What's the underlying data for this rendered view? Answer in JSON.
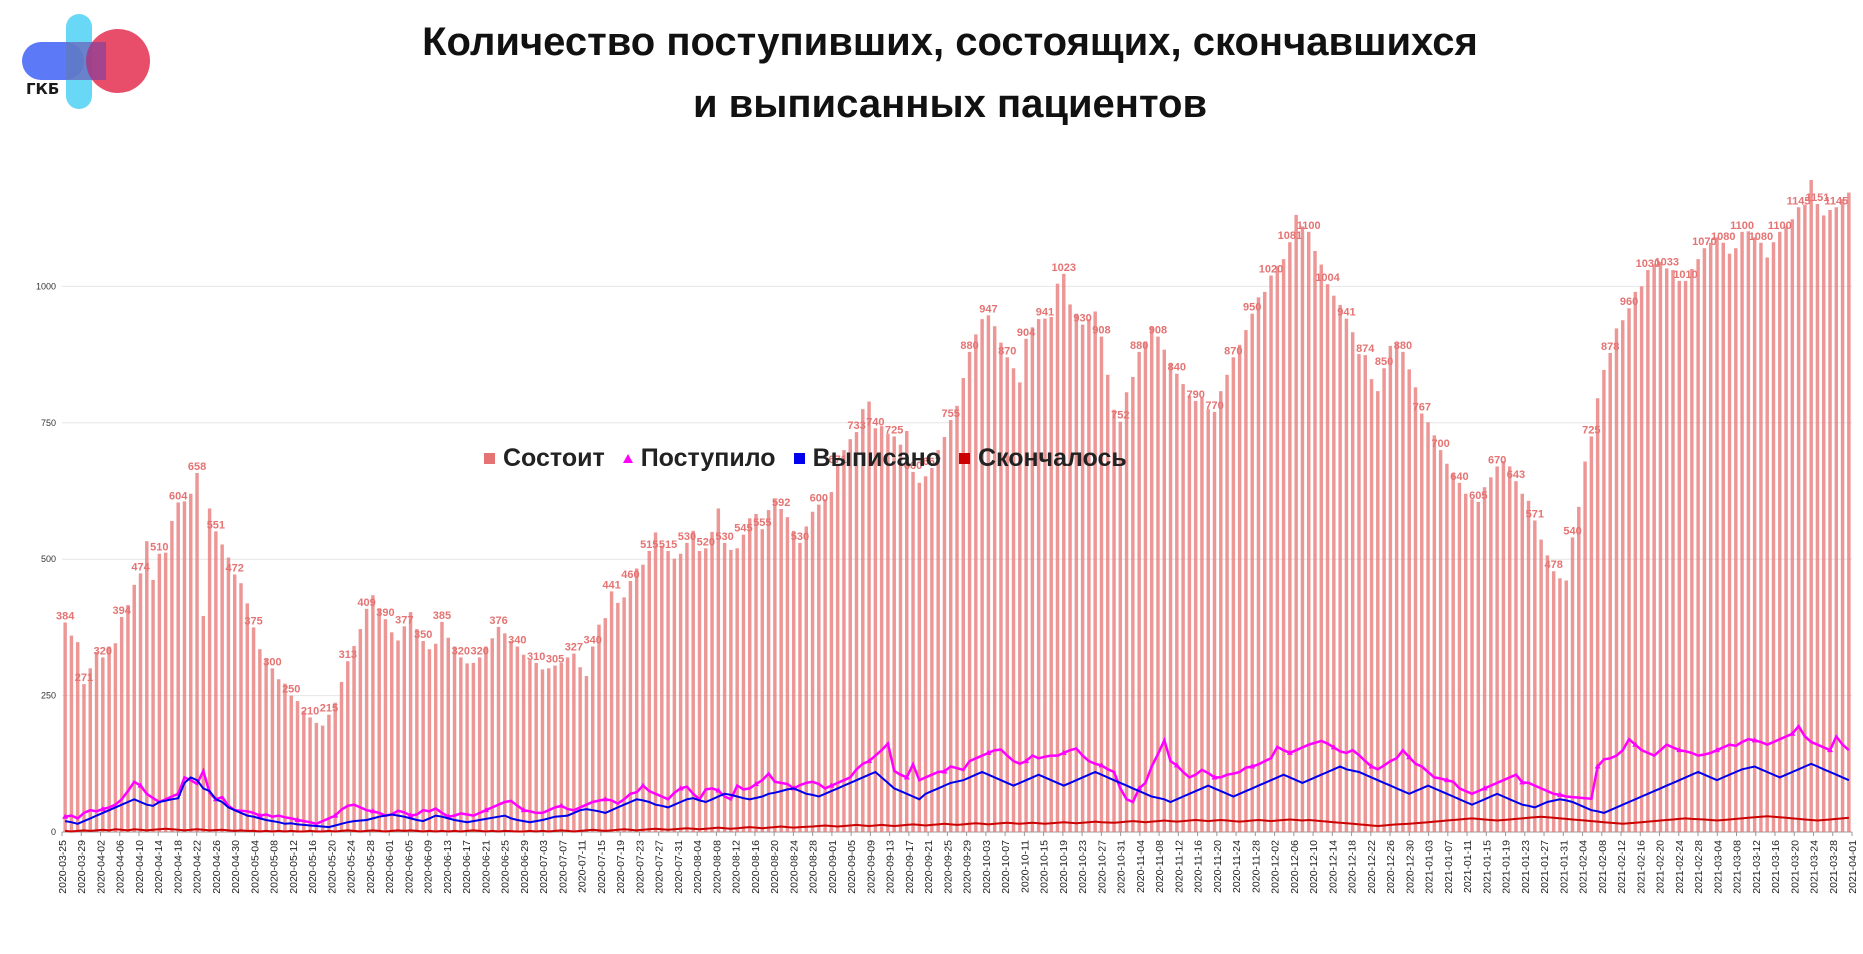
{
  "logo": {
    "text": "ГКБ",
    "colors": [
      "#4a6cf7",
      "#4fd1f5",
      "#e63b5a"
    ]
  },
  "title": {
    "line1": "Количество поступивших, состоящих, скончавшихся",
    "line2": "и выписанных пациентов"
  },
  "legend": [
    {
      "label": "Состоит",
      "marker": "square",
      "color": "#e57373"
    },
    {
      "label": "Поступило",
      "marker": "triangle",
      "color": "#ff00ff"
    },
    {
      "label": "Выписано",
      "marker": "square",
      "color": "#0000ee"
    },
    {
      "label": "Скончалось",
      "marker": "square",
      "color": "#cc0000"
    }
  ],
  "chart_data": {
    "type": "bar",
    "title": "Количество поступивших, состоящих, скончавшихся и выписанных пациентов",
    "xlabel": "",
    "ylabel": "",
    "ylim": [
      0,
      1250
    ],
    "yticks": [
      0,
      250,
      500,
      750,
      1000
    ],
    "grid": true,
    "legend_position": "middle-left",
    "x_tick_labels": [
      "2020-03-25",
      "2020-03-29",
      "2020-04-02",
      "2020-04-06",
      "2020-04-10",
      "2020-04-14",
      "2020-04-18",
      "2020-04-22",
      "2020-04-26",
      "2020-04-30",
      "2020-05-04",
      "2020-05-08",
      "2020-05-12",
      "2020-05-16",
      "2020-05-20",
      "2020-05-24",
      "2020-05-28",
      "2020-06-01",
      "2020-06-05",
      "2020-06-09",
      "2020-06-13",
      "2020-06-17",
      "2020-06-21",
      "2020-06-25",
      "2020-06-29",
      "2020-07-03",
      "2020-07-07",
      "2020-07-11",
      "2020-07-15",
      "2020-07-19",
      "2020-07-23",
      "2020-07-27",
      "2020-07-31",
      "2020-08-04",
      "2020-08-08",
      "2020-08-12",
      "2020-08-16",
      "2020-08-20",
      "2020-08-24",
      "2020-08-28",
      "2020-09-01",
      "2020-09-05",
      "2020-09-09",
      "2020-09-13",
      "2020-09-17",
      "2020-09-21",
      "2020-09-25",
      "2020-09-29",
      "2020-10-03",
      "2020-10-07",
      "2020-10-11",
      "2020-10-15",
      "2020-10-19",
      "2020-10-23",
      "2020-10-27",
      "2020-10-31",
      "2020-11-04",
      "2020-11-08",
      "2020-11-12",
      "2020-11-16",
      "2020-11-20",
      "2020-11-24",
      "2020-11-28",
      "2020-12-02",
      "2020-12-06",
      "2020-12-10",
      "2020-12-14",
      "2020-12-18",
      "2020-12-22",
      "2020-12-26",
      "2020-12-30",
      "2021-01-03",
      "2021-01-07",
      "2021-01-11",
      "2021-01-15",
      "2021-01-19",
      "2021-01-23",
      "2021-01-27",
      "2021-01-31",
      "2021-02-04",
      "2021-02-08",
      "2021-02-12",
      "2021-02-16",
      "2021-02-20",
      "2021-02-24",
      "2021-02-28",
      "2021-03-04",
      "2021-03-08",
      "2021-03-12",
      "2021-03-16",
      "2021-03-20",
      "2021-03-24",
      "2021-03-28",
      "2021-04-01"
    ],
    "series": [
      {
        "name": "Состоит",
        "kind": "bar",
        "color": "#e57373",
        "values": [
          384,
          360,
          348,
          271,
          300,
          330,
          320,
          340,
          346,
          394,
          416,
          453,
          474,
          533,
          462,
          510,
          512,
          570,
          604,
          606,
          620,
          658,
          396,
          593,
          551,
          527,
          503,
          472,
          456,
          419,
          375,
          335,
          317,
          300,
          280,
          272,
          250,
          240,
          222,
          210,
          200,
          195,
          215,
          237,
          275,
          313,
          341,
          372,
          409,
          434,
          410,
          390,
          366,
          351,
          377,
          403,
          372,
          350,
          335,
          345,
          385,
          356,
          340,
          320,
          309,
          310,
          320,
          340,
          355,
          376,
          364,
          350,
          340,
          325,
          315,
          310,
          298,
          300,
          305,
          310,
          320,
          327,
          302,
          286,
          340,
          380,
          392,
          441,
          420,
          430,
          460,
          483,
          490,
          515,
          549,
          525,
          515,
          501,
          510,
          530,
          552,
          515,
          520,
          550,
          593,
          530,
          517,
          520,
          545,
          575,
          583,
          555,
          590,
          609,
          592,
          577,
          552,
          530,
          560,
          587,
          600,
          610,
          623,
          671,
          700,
          720,
          733,
          775,
          789,
          740,
          744,
          730,
          725,
          710,
          735,
          660,
          640,
          652,
          667,
          700,
          724,
          755,
          781,
          832,
          880,
          912,
          940,
          947,
          927,
          897,
          870,
          850,
          824,
          904,
          925,
          940,
          941,
          944,
          1005,
          1023,
          967,
          950,
          930,
          940,
          954,
          908,
          838,
          774,
          752,
          806,
          834,
          880,
          899,
          926,
          908,
          884,
          860,
          840,
          821,
          800,
          790,
          796,
          775,
          770,
          808,
          838,
          870,
          893,
          920,
          950,
          980,
          990,
          1020,
          1037,
          1050,
          1081,
          1131,
          1110,
          1100,
          1065,
          1040,
          1004,
          983,
          966,
          941,
          916,
          876,
          874,
          830,
          808,
          850,
          891,
          896,
          880,
          848,
          815,
          767,
          751,
          727,
          700,
          675,
          657,
          640,
          620,
          610,
          605,
          632,
          650,
          670,
          680,
          670,
          643,
          620,
          607,
          571,
          536,
          507,
          478,
          465,
          461,
          540,
          596,
          679,
          725,
          795,
          847,
          878,
          923,
          938,
          960,
          990,
          1000,
          1030,
          1040,
          1045,
          1033,
          1030,
          1010,
          1010,
          1032,
          1050,
          1070,
          1080,
          1090,
          1080,
          1060,
          1070,
          1100,
          1101,
          1090,
          1080,
          1053,
          1081,
          1100,
          1110,
          1123,
          1145,
          1150,
          1195,
          1151,
          1130,
          1140,
          1145,
          1160,
          1172
        ]
      },
      {
        "name": "Поступило",
        "kind": "line",
        "color": "#ff00ff",
        "values": [
          28,
          30,
          25,
          35,
          40,
          38,
          42,
          45,
          50,
          60,
          75,
          92,
          85,
          70,
          62,
          55,
          60,
          65,
          70,
          100,
          95,
          88,
          112,
          72,
          60,
          64,
          48,
          40,
          38,
          35,
          30,
          32,
          28,
          30,
          27,
          25,
          22,
          20,
          18,
          15,
          20,
          25,
          30,
          41,
          48,
          50,
          45,
          40,
          38,
          35,
          30,
          32,
          39,
          36,
          30,
          32,
          40,
          38,
          43,
          35,
          28,
          30,
          34,
          32,
          30,
          35,
          40,
          45,
          50,
          55,
          57,
          48,
          40,
          38,
          35,
          35,
          40,
          45,
          48,
          42,
          40,
          45,
          50,
          55,
          60,
          58,
          52,
          60,
          70,
          73,
          85,
          75,
          70,
          65,
          60,
          72,
          80,
          83,
          70,
          60,
          78,
          80,
          76,
          65,
          60,
          85,
          78,
          80,
          88,
          95,
          107,
          92,
          90,
          88,
          80,
          86,
          90,
          92,
          88,
          80,
          85,
          90,
          95,
          100,
          115,
          125,
          130,
          140,
          150,
          162,
          112,
          105,
          100,
          124,
          95,
          100,
          105,
          110,
          111,
          120,
          114,
          130,
          135,
          140,
          145,
          150,
          151,
          140,
          130,
          125,
          130,
          140,
          135,
          138,
          140,
          140,
          145,
          150,
          153,
          140,
          130,
          125,
          122,
          115,
          110,
          80,
          60,
          55,
          80,
          90,
          120,
          143,
          168,
          130,
          122,
          110,
          100,
          105,
          114,
          108,
          100,
          100,
          105,
          107,
          110,
          118,
          120,
          124,
          130,
          135,
          156,
          150,
          145,
          150,
          155,
          160,
          167,
          162,
          155,
          148,
          145,
          150,
          141,
          130,
          120,
          115,
          122,
          130,
          135,
          150,
          137,
          125,
          120,
          110,
          100,
          98,
          95,
          92,
          80,
          75,
          70,
          75,
          80,
          85,
          90,
          95,
          100,
          105,
          91,
          90,
          85,
          80,
          75,
          70,
          68,
          65,
          64,
          63,
          62,
          61,
          120,
          133,
          135,
          140,
          150,
          170,
          160,
          150,
          145,
          140,
          150,
          160,
          150,
          148,
          145,
          140,
          142,
          145,
          150,
          155,
          160,
          158,
          165,
          170,
          168,
          165,
          160,
          165,
          170,
          175,
          180,
          194,
          175,
          165,
          160,
          155,
          150,
          175,
          160,
          150
        ]
      },
      {
        "name": "Выписано",
        "kind": "line",
        "color": "#0000ee",
        "values": [
          20,
          18,
          15,
          20,
          25,
          30,
          35,
          40,
          45,
          50,
          55,
          60,
          55,
          50,
          48,
          55,
          60,
          62,
          90,
          100,
          95,
          80,
          75,
          60,
          55,
          45,
          40,
          35,
          30,
          28,
          25,
          22,
          20,
          18,
          15,
          16,
          14,
          13,
          12,
          11,
          10,
          9,
          12,
          15,
          18,
          20,
          22,
          25,
          28,
          30,
          32,
          30,
          28,
          25,
          22,
          20,
          25,
          30,
          28,
          25,
          22,
          20,
          18,
          20,
          22,
          24,
          26,
          28,
          30,
          25,
          22,
          20,
          18,
          20,
          22,
          25,
          28,
          30,
          35,
          40,
          42,
          40,
          38,
          35,
          40,
          45,
          50,
          55,
          60,
          58,
          55,
          50,
          48,
          45,
          50,
          55,
          60,
          62,
          58,
          55,
          60,
          65,
          70,
          68,
          65,
          62,
          60,
          65,
          70,
          72,
          75,
          78,
          80,
          75,
          70,
          68,
          65,
          70,
          75,
          80,
          85,
          90,
          95,
          100,
          105,
          110,
          100,
          90,
          80,
          75,
          70,
          65,
          60,
          70,
          75,
          80,
          85,
          90,
          95,
          100,
          105,
          110,
          105,
          100,
          95,
          90,
          85,
          90,
          95,
          100,
          105,
          100,
          95,
          90,
          85,
          90,
          95,
          100,
          105,
          110,
          105,
          100,
          95,
          90,
          85,
          80,
          75,
          70,
          65,
          60,
          55,
          60,
          65,
          70,
          75,
          80,
          85,
          80,
          75,
          70,
          65,
          70,
          75,
          80,
          85,
          90,
          95,
          100,
          105,
          100,
          95,
          90,
          95,
          100,
          105,
          110,
          115,
          120,
          115,
          110,
          105,
          100,
          95,
          90,
          85,
          80,
          75,
          70,
          75,
          80,
          85,
          80,
          75,
          70,
          65,
          60,
          55,
          50,
          55,
          60,
          65,
          70,
          65,
          60,
          55,
          50,
          48,
          45,
          50,
          55,
          60,
          58,
          55,
          50,
          45,
          40,
          38,
          35,
          40,
          45,
          50,
          55,
          60,
          65,
          70,
          75,
          80,
          85,
          90,
          95,
          100,
          105,
          110,
          105,
          100,
          95,
          100,
          105,
          110,
          115,
          120,
          115,
          110,
          105,
          100,
          105,
          110,
          115,
          120,
          125,
          120,
          115,
          110,
          105,
          100,
          95
        ]
      },
      {
        "name": "Скончалось",
        "kind": "line",
        "color": "#cc0000",
        "values": [
          2,
          1,
          2,
          3,
          2,
          3,
          4,
          3,
          5,
          4,
          3,
          5,
          4,
          3,
          4,
          5,
          6,
          5,
          4,
          3,
          4,
          5,
          4,
          3,
          4,
          3,
          2,
          3,
          2,
          2,
          1,
          2,
          1,
          2,
          1,
          2,
          1,
          1,
          2,
          1,
          1,
          2,
          1,
          2,
          3,
          2,
          1,
          2,
          3,
          2,
          1,
          2,
          3,
          2,
          3,
          2,
          1,
          2,
          1,
          2,
          1,
          2,
          1,
          2,
          3,
          2,
          1,
          2,
          1,
          2,
          1,
          1,
          2,
          1,
          2,
          1,
          2,
          3,
          2,
          1,
          2,
          3,
          4,
          3,
          2,
          3,
          4,
          5,
          4,
          3,
          4,
          5,
          6,
          5,
          4,
          5,
          6,
          7,
          6,
          5,
          6,
          7,
          8,
          7,
          6,
          7,
          8,
          9,
          8,
          7,
          8,
          9,
          10,
          9,
          8,
          9,
          10,
          11,
          12,
          11,
          10,
          11,
          12,
          13,
          12,
          11,
          12,
          13,
          12,
          11,
          12,
          13,
          14,
          13,
          12,
          13,
          14,
          15,
          14,
          13,
          14,
          15,
          16,
          15,
          14,
          15,
          16,
          17,
          16,
          15,
          16,
          17,
          16,
          15,
          16,
          17,
          18,
          17,
          16,
          17,
          18,
          19,
          18,
          17,
          18,
          19,
          20,
          19,
          18,
          19,
          20,
          21,
          20,
          19,
          20,
          21,
          22,
          21,
          20,
          21,
          22,
          21,
          20,
          19,
          20,
          21,
          22,
          21,
          20,
          21,
          22,
          23,
          22,
          21,
          22,
          21,
          20,
          19,
          18,
          17,
          16,
          15,
          14,
          13,
          12,
          11,
          12,
          13,
          14,
          15,
          16,
          17,
          18,
          19,
          20,
          21,
          22,
          23,
          24,
          25,
          24,
          23,
          22,
          21,
          22,
          23,
          24,
          25,
          26,
          27,
          28,
          27,
          26,
          25,
          24,
          23,
          22,
          21,
          20,
          19,
          18,
          17,
          16,
          15,
          16,
          17,
          18,
          19,
          20,
          21,
          22,
          23,
          24,
          25,
          24,
          23,
          22,
          21,
          22,
          23,
          24,
          25,
          26,
          27,
          28,
          29,
          28,
          27,
          26,
          25,
          24,
          23,
          22,
          21,
          22,
          23,
          24,
          25,
          26
        ]
      }
    ]
  }
}
